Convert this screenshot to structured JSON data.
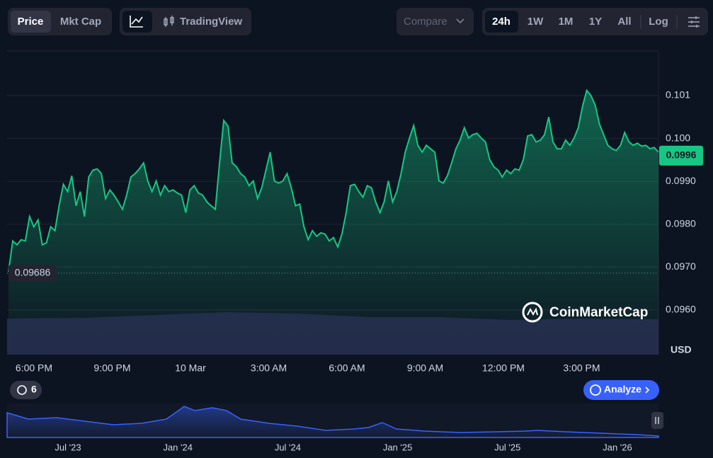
{
  "toolbar": {
    "metric_buttons": [
      "Price",
      "Mkt Cap"
    ],
    "view_button": "TradingView",
    "compare": "Compare",
    "ranges": [
      "24h",
      "1W",
      "1M",
      "1Y",
      "All"
    ],
    "log": "Log"
  },
  "chart_data": {
    "type": "line",
    "series": [
      {
        "color": "#16c784",
        "values": [
          0.09689,
          0.09761,
          0.09752,
          0.09764,
          0.09761,
          0.09818,
          0.09794,
          0.0981,
          0.09752,
          0.09757,
          0.09794,
          0.09785,
          0.09843,
          0.09893,
          0.09876,
          0.09913,
          0.09843,
          0.09876,
          0.09818,
          0.0991,
          0.09926,
          0.09929,
          0.09918,
          0.0986,
          0.0988,
          0.09868,
          0.09852,
          0.09835,
          0.09868,
          0.0991,
          0.09918,
          0.09929,
          0.09943,
          0.09901,
          0.09876,
          0.09901,
          0.09868,
          0.0989,
          0.09876,
          0.0988,
          0.09873,
          0.09868,
          0.09827,
          0.0988,
          0.0989,
          0.09873,
          0.09868,
          0.09852,
          0.09843,
          0.09835,
          0.09943,
          0.10042,
          0.10029,
          0.09943,
          0.09934,
          0.09918,
          0.0991,
          0.0989,
          0.09901,
          0.0986,
          0.09885,
          0.09926,
          0.09968,
          0.09901,
          0.09896,
          0.09901,
          0.09918,
          0.09885,
          0.09843,
          0.09847,
          0.09794,
          0.09764,
          0.09785,
          0.09772,
          0.0978,
          0.09777,
          0.09761,
          0.09769,
          0.09747,
          0.09777,
          0.09827,
          0.0989,
          0.09893,
          0.09876,
          0.09863,
          0.0989,
          0.09885,
          0.09852,
          0.09827,
          0.09852,
          0.09901,
          0.09852,
          0.09876,
          0.09918,
          0.09968,
          0.10001,
          0.1003,
          0.09984,
          0.09968,
          0.09984,
          0.09976,
          0.09968,
          0.09901,
          0.09896,
          0.09913,
          0.09943,
          0.09976,
          0.09996,
          0.10025,
          0.10001,
          0.10009,
          0.10012,
          0.10001,
          0.09992,
          0.09951,
          0.09934,
          0.09926,
          0.0991,
          0.09926,
          0.09918,
          0.09929,
          0.09926,
          0.09951,
          0.10006,
          0.10009,
          0.09992,
          0.09996,
          0.10009,
          0.1005,
          0.09992,
          0.09976,
          0.09976,
          0.09996,
          0.09984,
          0.10001,
          0.10025,
          0.10075,
          0.10112,
          0.101,
          0.10078,
          0.10034,
          0.10009,
          0.09984,
          0.09976,
          0.09972,
          0.09984,
          0.10014,
          0.09992,
          0.09984,
          0.09989,
          0.09982,
          0.09984,
          0.09976,
          0.09979,
          0.09968
        ]
      }
    ],
    "x_labels": [
      "6:00 PM",
      "9:00 PM",
      "10 Mar",
      "3:00 AM",
      "6:00 AM",
      "9:00 AM",
      "12:00 PM",
      "3:00 PM"
    ],
    "ylim": [
      0.09496,
      0.10204
    ],
    "yticks": [
      {
        "value": 0.096,
        "label": "0.0960"
      },
      {
        "value": 0.097,
        "label": "0.0970"
      },
      {
        "value": 0.098,
        "label": "0.0980"
      },
      {
        "value": 0.099,
        "label": "0.0990"
      },
      {
        "value": 0.1,
        "label": "0.100"
      },
      0.101
    ],
    "grid": true,
    "y_unit": "USD",
    "open_price": 0.09686,
    "current_price": 0.0996
  },
  "watermark": "CoinMarketCap",
  "history_count": 6,
  "analyze": "Analyze",
  "overview_labels": [
    "Jul '23",
    "Jan '24",
    "Jul '24",
    "Jan '25",
    "Jul '25",
    "Jan '26"
  ]
}
